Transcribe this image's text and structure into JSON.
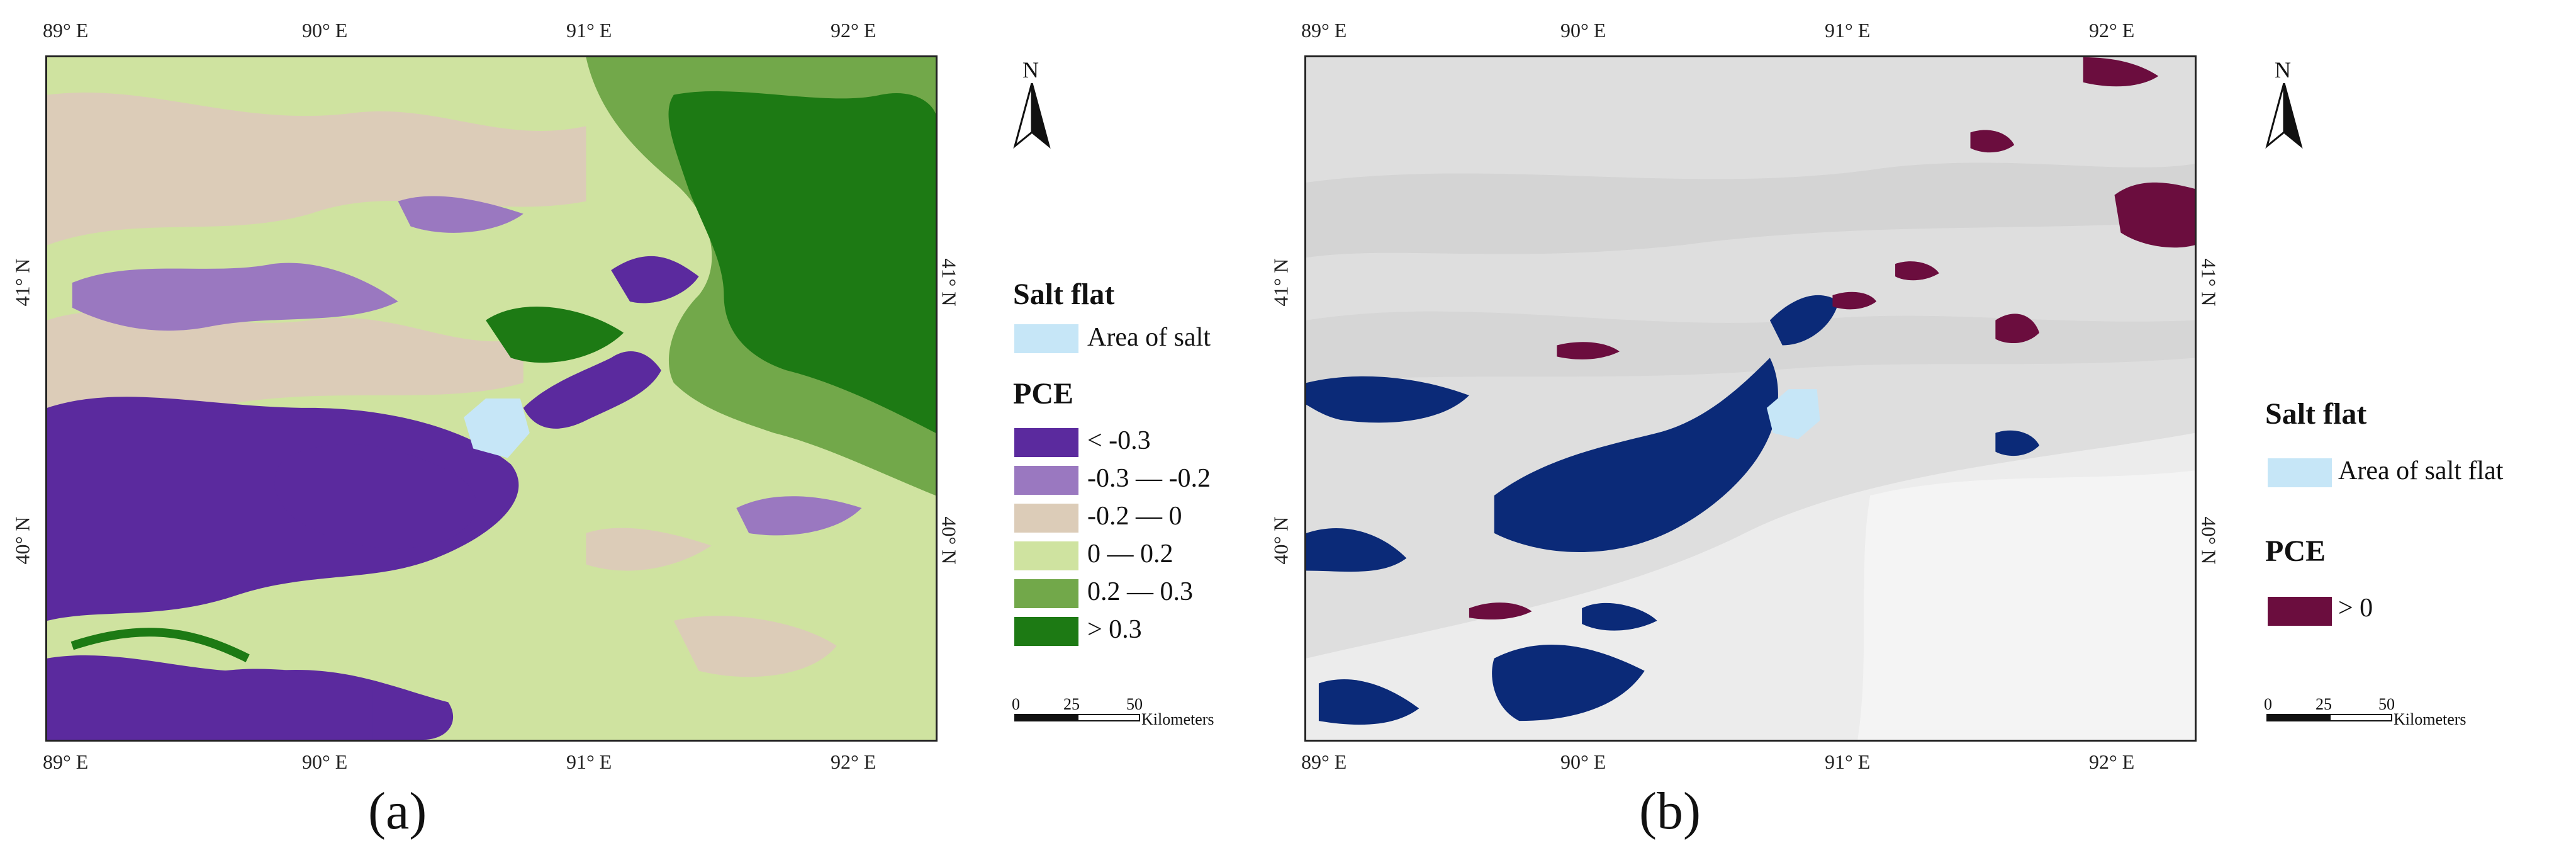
{
  "panels": [
    {
      "id": "a",
      "label": "(a)",
      "top_ticks": [
        "89° E",
        "90° E",
        "91° E",
        "92° E"
      ],
      "bottom_ticks": [
        "89° E",
        "90° E",
        "91° E",
        "92° E"
      ],
      "left_ticks": [
        "41° N",
        "40° N"
      ],
      "right_ticks": [
        "41° N",
        "40° N"
      ],
      "north_label": "N",
      "legend": {
        "salt_title": "Salt flat",
        "salt_item": "Area of salt",
        "pce_title": "PCE",
        "classes": [
          {
            "label": "< -0.3",
            "color": "#5b2a9e"
          },
          {
            "label": "-0.3 — -0.2",
            "color": "#9a78c0"
          },
          {
            "label": "-0.2 — 0",
            "color": "#dcccb8"
          },
          {
            "label": "0 — 0.2",
            "color": "#cfe3a0"
          },
          {
            "label": "0.2 — 0.3",
            "color": "#72a84a"
          },
          {
            "label": "> 0.3",
            "color": "#1d7a14"
          }
        ]
      },
      "scale": {
        "ticks": [
          "0",
          "25",
          "50"
        ],
        "unit": "Kilometers"
      }
    },
    {
      "id": "b",
      "label": "(b)",
      "top_ticks": [
        "89° E",
        "90° E",
        "91° E",
        "92° E"
      ],
      "bottom_ticks": [
        "89° E",
        "90° E",
        "91° E",
        "92° E"
      ],
      "left_ticks": [
        "41° N",
        "40° N"
      ],
      "right_ticks": [
        "41° N",
        "40° N"
      ],
      "north_label": "N",
      "legend": {
        "salt_title": "Salt flat",
        "salt_item": "Area of salt flat",
        "pce_title": "PCE",
        "classes": [
          {
            "label": "> 0",
            "color": "#6b0d3e"
          }
        ]
      },
      "scale": {
        "ticks": [
          "0",
          "25",
          "50"
        ],
        "unit": "Kilometers"
      }
    }
  ],
  "colors": {
    "salt_flat": "#c6e6f7",
    "negative_pce_b": "#0b2a78",
    "hillshade_b": "#e2e2e2"
  }
}
